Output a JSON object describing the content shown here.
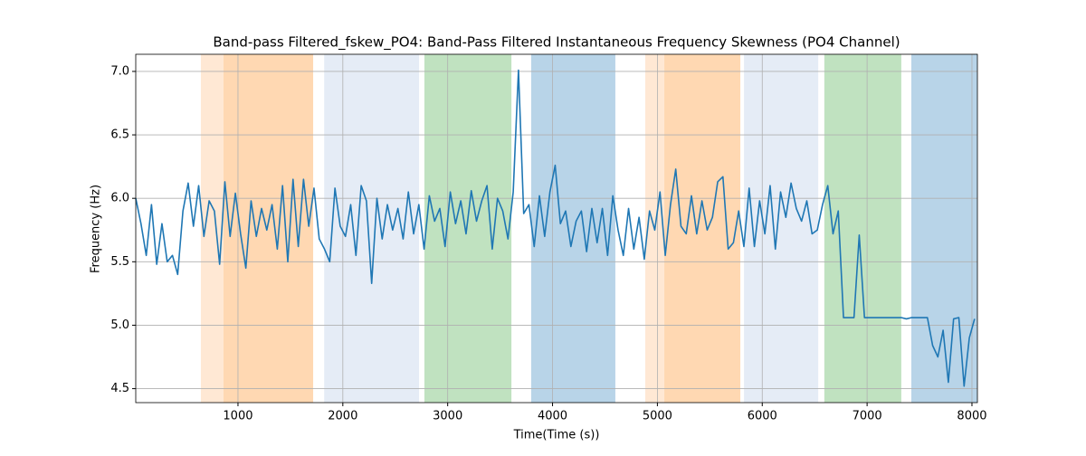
{
  "chart_data": {
    "type": "line",
    "title": "Band-pass Filtered_fskew_PO4: Band-Pass Filtered Instantaneous Frequency Skewness (PO4 Channel)",
    "x_label": "Time(Time (s))",
    "y_label": "Frequency (Hz)",
    "xlim": [
      25,
      8052
    ],
    "ylim": [
      4.39,
      7.135
    ],
    "xticks": [
      1000,
      2000,
      3000,
      4000,
      5000,
      6000,
      7000,
      8000
    ],
    "yticks": [
      4.5,
      {
        "value": 5,
        "label": "5.0"
      },
      5.5,
      {
        "value": 6,
        "label": "6.0"
      },
      6.5,
      {
        "value": 7,
        "label": "7.0"
      }
    ],
    "grid": true,
    "spans": [
      {
        "start": 646,
        "end": 862,
        "color": "#ffe8d4"
      },
      {
        "start": 862,
        "end": 1717,
        "color": "#ffd8b2"
      },
      {
        "start": 1822,
        "end": 2727,
        "color": "#e5ecf6"
      },
      {
        "start": 2778,
        "end": 3608,
        "color": "#c0e2c0"
      },
      {
        "start": 3796,
        "end": 4599,
        "color": "#b8d4e8"
      },
      {
        "start": 4884,
        "end": 5066,
        "color": "#ffe8d4"
      },
      {
        "start": 5066,
        "end": 5791,
        "color": "#ffd8b2"
      },
      {
        "start": 5826,
        "end": 6534,
        "color": "#e5ecf6"
      },
      {
        "start": 6592,
        "end": 7326,
        "color": "#c0e2c0"
      },
      {
        "start": 7422,
        "end": 8052,
        "color": "#b8d4e8"
      }
    ],
    "x": [
      25,
      75,
      125,
      175,
      225,
      275,
      325,
      375,
      425,
      475,
      525,
      575,
      625,
      675,
      725,
      775,
      825,
      875,
      925,
      975,
      1025,
      1075,
      1125,
      1175,
      1225,
      1275,
      1325,
      1375,
      1425,
      1475,
      1525,
      1575,
      1625,
      1675,
      1725,
      1775,
      1825,
      1875,
      1925,
      1975,
      2025,
      2075,
      2125,
      2175,
      2225,
      2275,
      2325,
      2375,
      2425,
      2475,
      2525,
      2575,
      2625,
      2675,
      2725,
      2775,
      2825,
      2875,
      2925,
      2975,
      3025,
      3075,
      3125,
      3175,
      3225,
      3275,
      3325,
      3375,
      3425,
      3475,
      3525,
      3575,
      3625,
      3675,
      3725,
      3775,
      3825,
      3875,
      3925,
      3975,
      4025,
      4075,
      4125,
      4175,
      4225,
      4275,
      4325,
      4375,
      4425,
      4475,
      4525,
      4575,
      4625,
      4675,
      4725,
      4775,
      4825,
      4875,
      4925,
      4975,
      5025,
      5075,
      5125,
      5175,
      5225,
      5275,
      5325,
      5375,
      5425,
      5475,
      5525,
      5575,
      5625,
      5675,
      5725,
      5775,
      5825,
      5875,
      5925,
      5975,
      6025,
      6075,
      6125,
      6175,
      6225,
      6275,
      6325,
      6375,
      6425,
      6475,
      6525,
      6575,
      6625,
      6675,
      6725,
      6775,
      6825,
      6875,
      6925,
      6975,
      7025,
      7075,
      7125,
      7175,
      7225,
      7275,
      7325,
      7375,
      7425,
      7475,
      7525,
      7575,
      7625,
      7675,
      7725,
      7775,
      7825,
      7875,
      7925,
      7975,
      8025
    ],
    "series": [
      {
        "color": "#1f77b4",
        "values": [
          6.0,
          5.8,
          5.55,
          5.95,
          5.48,
          5.8,
          5.5,
          5.55,
          5.4,
          5.9,
          6.12,
          5.78,
          6.1,
          5.7,
          5.98,
          5.9,
          5.48,
          6.13,
          5.7,
          6.04,
          5.72,
          5.45,
          5.98,
          5.7,
          5.92,
          5.75,
          5.95,
          5.6,
          6.1,
          5.5,
          6.15,
          5.62,
          6.15,
          5.78,
          6.08,
          5.68,
          5.6,
          5.5,
          6.08,
          5.78,
          5.7,
          5.95,
          5.55,
          6.1,
          5.98,
          5.33,
          6.0,
          5.68,
          5.95,
          5.75,
          5.92,
          5.68,
          6.05,
          5.72,
          5.95,
          5.6,
          6.02,
          5.82,
          5.92,
          5.62,
          6.05,
          5.8,
          5.98,
          5.72,
          6.06,
          5.82,
          5.98,
          6.1,
          5.6,
          6.0,
          5.9,
          5.68,
          6.05,
          7.01,
          5.88,
          5.95,
          5.62,
          6.02,
          5.7,
          6.05,
          6.26,
          5.8,
          5.9,
          5.62,
          5.82,
          5.9,
          5.58,
          5.92,
          5.65,
          5.92,
          5.55,
          6.02,
          5.75,
          5.55,
          5.92,
          5.6,
          5.85,
          5.52,
          5.9,
          5.75,
          6.05,
          5.55,
          5.95,
          6.23,
          5.78,
          5.72,
          6.02,
          5.72,
          5.98,
          5.75,
          5.85,
          6.13,
          6.17,
          5.6,
          5.65,
          5.9,
          5.62,
          6.08,
          5.62,
          5.98,
          5.72,
          6.1,
          5.6,
          6.05,
          5.85,
          6.12,
          5.92,
          5.82,
          5.98,
          5.72,
          5.75,
          5.95,
          6.1,
          5.72,
          5.9,
          5.06,
          5.06,
          5.06,
          5.71,
          5.06,
          5.06,
          5.06,
          5.06,
          5.06,
          5.06,
          5.06,
          5.06,
          5.05,
          5.06,
          5.06,
          5.06,
          5.06,
          4.84,
          4.75,
          4.96,
          4.55,
          5.05,
          5.06,
          4.52,
          4.9,
          5.05
        ]
      }
    ]
  }
}
